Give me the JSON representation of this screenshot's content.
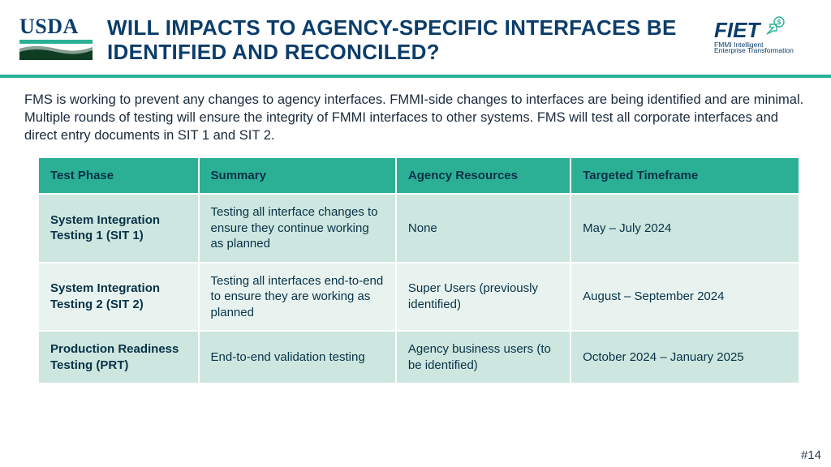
{
  "logo_left": {
    "text": "USDA",
    "bar_color": "#2bb095",
    "swoosh_dark": "#0f3d24",
    "text_color": "#0b3d6b"
  },
  "title": "WILL IMPACTS TO AGENCY-SPECIFIC INTERFACES BE IDENTIFIED AND RECONCILED?",
  "logo_right": {
    "main": "FIET",
    "sub1": "FMMI Intelligent",
    "sub2": "Enterprise Transformation",
    "accent": "#2bb095",
    "text_color": "#0b3d6b"
  },
  "hr_color": "#2bb095",
  "intro": "FMS is working to prevent any changes to agency interfaces. FMMI-side changes to interfaces are being identified and are minimal. Multiple rounds of testing will ensure the integrity of FMMI interfaces to other systems. FMS will test all corporate interfaces and direct entry documents in SIT 1 and SIT 2.",
  "table": {
    "header_bg": "#2bb095",
    "row_bg_alt1": "#cde6df",
    "row_bg_alt2": "#e8f3ef",
    "text_color": "#083247",
    "columns": [
      "Test Phase",
      "Summary",
      "Agency Resources",
      "Targeted Timeframe"
    ],
    "rows": [
      {
        "phase": "System Integration Testing 1 (SIT 1)",
        "summary": "Testing all interface changes to ensure they continue working as planned",
        "resources": "None",
        "timeframe": "May – July 2024"
      },
      {
        "phase": "System Integration Testing 2 (SIT 2)",
        "summary": "Testing all interfaces end-to-end to ensure they are working as planned",
        "resources": "Super Users (previously identified)",
        "timeframe": "August – September 2024"
      },
      {
        "phase": "Production Readiness Testing (PRT)",
        "summary": "End-to-end validation testing",
        "resources": "Agency business users (to be identified)",
        "timeframe": "October 2024 – January 2025"
      }
    ]
  },
  "page_number": "#14"
}
